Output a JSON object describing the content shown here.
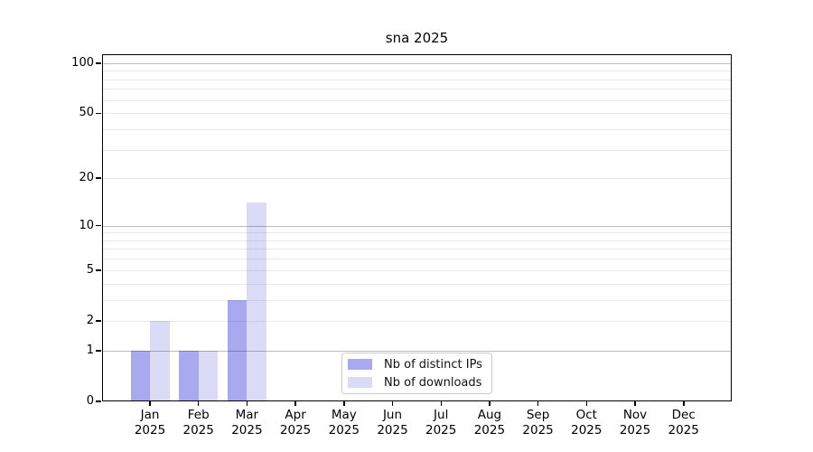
{
  "title": "sna 2025",
  "chart_data": {
    "type": "bar",
    "title": "sna 2025",
    "categories": [
      "Jan",
      "Feb",
      "Mar",
      "Apr",
      "May",
      "Jun",
      "Jul",
      "Aug",
      "Sep",
      "Oct",
      "Nov",
      "Dec"
    ],
    "category_sublabel": "2025",
    "series": [
      {
        "name": "Nb of distinct IPs",
        "color": "#a9a9ef",
        "values": [
          1,
          1,
          3,
          0,
          0,
          0,
          0,
          0,
          0,
          0,
          0,
          0
        ]
      },
      {
        "name": "Nb of downloads",
        "color": "#dbdbf8",
        "values": [
          2,
          1,
          14,
          0,
          0,
          0,
          0,
          0,
          0,
          0,
          0,
          0
        ]
      }
    ],
    "y_scale": "log1p",
    "ylim": [
      0,
      113
    ],
    "y_ticks": [
      0,
      1,
      2,
      5,
      10,
      20,
      50,
      100
    ],
    "y_tick_labels": [
      "0",
      "1",
      "2",
      "5",
      "10",
      "20",
      "50",
      "100"
    ],
    "major_gridlines": [
      1,
      10,
      100
    ],
    "minor_gridlines": [
      2,
      3,
      4,
      5,
      6,
      7,
      8,
      9,
      20,
      30,
      40,
      50,
      60,
      70,
      80,
      90
    ],
    "grid": true,
    "legend_position": "lower center"
  },
  "legend": {
    "items": [
      {
        "label": "Nb of distinct IPs",
        "color": "#a9a9ef"
      },
      {
        "label": "Nb of downloads",
        "color": "#dbdbf8"
      }
    ]
  },
  "colors": {
    "distinct_ips": "#a9a9ef",
    "downloads": "#dbdbf8",
    "major_grid": "#bdbdbd",
    "minor_grid": "#e9e9e9",
    "axis": "#000000"
  }
}
